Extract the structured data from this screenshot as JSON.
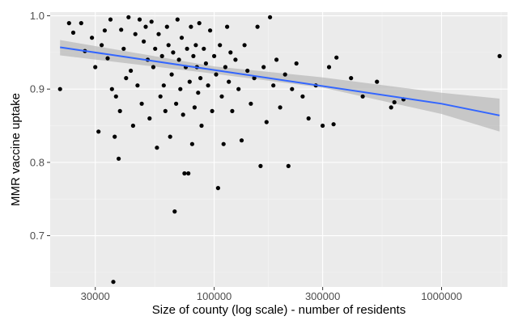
{
  "chart_data": {
    "type": "scatter",
    "title": "",
    "xlabel": "Size of county (log scale) - number of residents",
    "ylabel": "MMR vaccine uptake",
    "x_scale": "log",
    "xlim": [
      19000,
      1950000
    ],
    "ylim": [
      0.63,
      1.005
    ],
    "xticks": [
      30000,
      100000,
      300000,
      1000000
    ],
    "xtick_labels": [
      "30000",
      "100000",
      "300000",
      "1000000"
    ],
    "yticks": [
      0.7,
      0.8,
      0.9,
      1.0
    ],
    "ytick_labels": [
      "0.7",
      "0.8",
      "0.9",
      "1.0"
    ],
    "grid": true,
    "legend": "none",
    "colors": {
      "panel_background": "#ebebeb",
      "grid_major": "#ffffff",
      "grid_minor": "#f5f5f5",
      "points": "#000000",
      "trend_line": "#3366ff",
      "confidence_band": "#b3b3b3"
    },
    "trend_line": {
      "method": "linear fit on log10(x)",
      "points": [
        [
          21000,
          0.957
        ],
        [
          100000,
          0.926
        ],
        [
          1000000,
          0.88
        ],
        [
          1800000,
          0.864
        ]
      ],
      "ribbon_upper": [
        [
          21000,
          0.967
        ],
        [
          100000,
          0.931
        ],
        [
          300000,
          0.916
        ],
        [
          1000000,
          0.895
        ],
        [
          1800000,
          0.887
        ]
      ],
      "ribbon_lower": [
        [
          21000,
          0.946
        ],
        [
          100000,
          0.921
        ],
        [
          300000,
          0.902
        ],
        [
          1000000,
          0.866
        ],
        [
          1800000,
          0.842
        ]
      ]
    },
    "series": [
      {
        "points": [
          [
            21000,
            0.9
          ],
          [
            23000,
            0.99
          ],
          [
            24000,
            0.977
          ],
          [
            26000,
            0.99
          ],
          [
            27000,
            0.952
          ],
          [
            29000,
            0.97
          ],
          [
            30000,
            0.93
          ],
          [
            31000,
            0.842
          ],
          [
            32000,
            0.96
          ],
          [
            33000,
            0.98
          ],
          [
            34000,
            0.942
          ],
          [
            35000,
            0.995
          ],
          [
            35500,
            0.9
          ],
          [
            36000,
            0.637
          ],
          [
            36500,
            0.835
          ],
          [
            37000,
            0.89
          ],
          [
            38000,
            0.805
          ],
          [
            38500,
            0.87
          ],
          [
            39000,
            0.981
          ],
          [
            40000,
            0.955
          ],
          [
            41000,
            0.915
          ],
          [
            42000,
            0.998
          ],
          [
            43000,
            0.925
          ],
          [
            44000,
            0.85
          ],
          [
            45000,
            0.975
          ],
          [
            46000,
            0.905
          ],
          [
            47000,
            0.995
          ],
          [
            48000,
            0.88
          ],
          [
            49000,
            0.965
          ],
          [
            50000,
            0.985
          ],
          [
            51000,
            0.94
          ],
          [
            52000,
            0.86
          ],
          [
            53000,
            0.992
          ],
          [
            54000,
            0.93
          ],
          [
            55000,
            0.955
          ],
          [
            56000,
            0.82
          ],
          [
            57000,
            0.975
          ],
          [
            58000,
            0.89
          ],
          [
            59000,
            0.945
          ],
          [
            60000,
            0.905
          ],
          [
            61000,
            0.87
          ],
          [
            62000,
            0.985
          ],
          [
            63000,
            0.96
          ],
          [
            64000,
            0.835
          ],
          [
            65000,
            0.92
          ],
          [
            66000,
            0.95
          ],
          [
            67000,
            0.733
          ],
          [
            68000,
            0.88
          ],
          [
            69000,
            0.995
          ],
          [
            70000,
            0.94
          ],
          [
            71000,
            0.9
          ],
          [
            72000,
            0.97
          ],
          [
            73000,
            0.865
          ],
          [
            74000,
            0.785
          ],
          [
            75000,
            0.93
          ],
          [
            76000,
            0.955
          ],
          [
            77000,
            0.785
          ],
          [
            78000,
            0.91
          ],
          [
            79000,
            0.985
          ],
          [
            80000,
            0.825
          ],
          [
            81000,
            0.945
          ],
          [
            82000,
            0.875
          ],
          [
            83000,
            0.96
          ],
          [
            84000,
            0.93
          ],
          [
            85000,
            0.895
          ],
          [
            86000,
            0.99
          ],
          [
            87000,
            0.915
          ],
          [
            88000,
            0.85
          ],
          [
            90000,
            0.955
          ],
          [
            92000,
            0.935
          ],
          [
            94000,
            0.905
          ],
          [
            96000,
            0.98
          ],
          [
            98000,
            0.87
          ],
          [
            100000,
            0.945
          ],
          [
            102000,
            0.92
          ],
          [
            104000,
            0.765
          ],
          [
            106000,
            0.96
          ],
          [
            108000,
            0.89
          ],
          [
            110000,
            0.825
          ],
          [
            112000,
            0.93
          ],
          [
            114000,
            0.985
          ],
          [
            116000,
            0.91
          ],
          [
            118000,
            0.95
          ],
          [
            120000,
            0.87
          ],
          [
            124000,
            0.94
          ],
          [
            128000,
            0.9
          ],
          [
            132000,
            0.83
          ],
          [
            136000,
            0.96
          ],
          [
            140000,
            0.925
          ],
          [
            145000,
            0.88
          ],
          [
            150000,
            0.915
          ],
          [
            155000,
            0.985
          ],
          [
            160000,
            0.795
          ],
          [
            165000,
            0.93
          ],
          [
            170000,
            0.855
          ],
          [
            176000,
            0.998
          ],
          [
            182000,
            0.905
          ],
          [
            188000,
            0.94
          ],
          [
            195000,
            0.875
          ],
          [
            205000,
            0.92
          ],
          [
            212000,
            0.795
          ],
          [
            220000,
            0.9
          ],
          [
            230000,
            0.935
          ],
          [
            245000,
            0.89
          ],
          [
            260000,
            0.86
          ],
          [
            280000,
            0.905
          ],
          [
            300000,
            0.85
          ],
          [
            320000,
            0.93
          ],
          [
            335000,
            0.852
          ],
          [
            345000,
            0.943
          ],
          [
            400000,
            0.915
          ],
          [
            450000,
            0.89
          ],
          [
            520000,
            0.91
          ],
          [
            600000,
            0.875
          ],
          [
            620000,
            0.882
          ],
          [
            680000,
            0.886
          ],
          [
            1800000,
            0.945
          ]
        ]
      }
    ]
  }
}
